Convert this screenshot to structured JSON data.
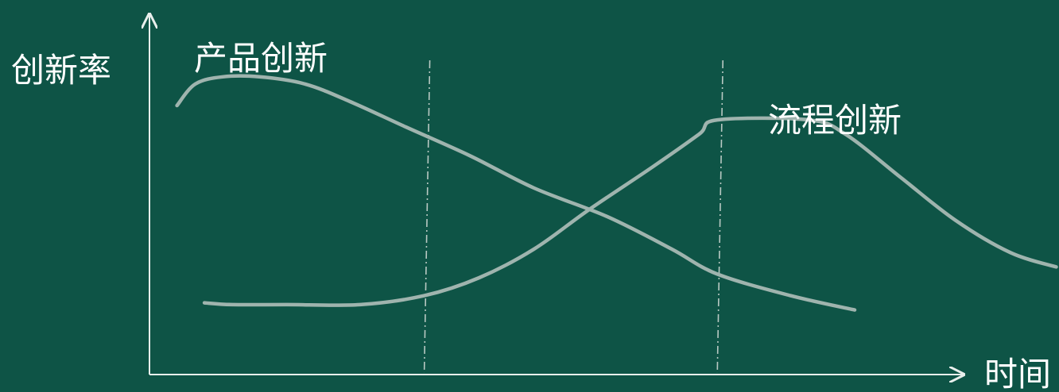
{
  "chart_data": {
    "type": "line",
    "ylabel": "创新率",
    "xlabel": "时间",
    "x_range": [
      0,
      100
    ],
    "y_range": [
      0,
      100
    ],
    "grid": false,
    "phase_boundaries": [
      30,
      62
    ],
    "series": [
      {
        "name": "产品创新",
        "points": [
          [
            3,
            75
          ],
          [
            5,
            81
          ],
          [
            8,
            83
          ],
          [
            12,
            83
          ],
          [
            17,
            81
          ],
          [
            22,
            76
          ],
          [
            28,
            69
          ],
          [
            35,
            61
          ],
          [
            42,
            52
          ],
          [
            50,
            44
          ],
          [
            57,
            35
          ],
          [
            62,
            28
          ],
          [
            70,
            22
          ],
          [
            77,
            18
          ]
        ]
      },
      {
        "name": "流程创新",
        "points": [
          [
            6,
            20
          ],
          [
            9,
            19.5
          ],
          [
            15,
            19.5
          ],
          [
            23,
            19.5
          ],
          [
            30,
            22
          ],
          [
            36,
            27
          ],
          [
            42,
            35
          ],
          [
            48,
            46
          ],
          [
            55,
            58
          ],
          [
            60,
            67
          ],
          [
            62,
            71
          ],
          [
            72,
            71
          ],
          [
            76,
            67
          ],
          [
            82,
            55
          ],
          [
            88,
            43
          ],
          [
            94,
            34
          ],
          [
            99,
            30
          ]
        ]
      }
    ]
  }
}
